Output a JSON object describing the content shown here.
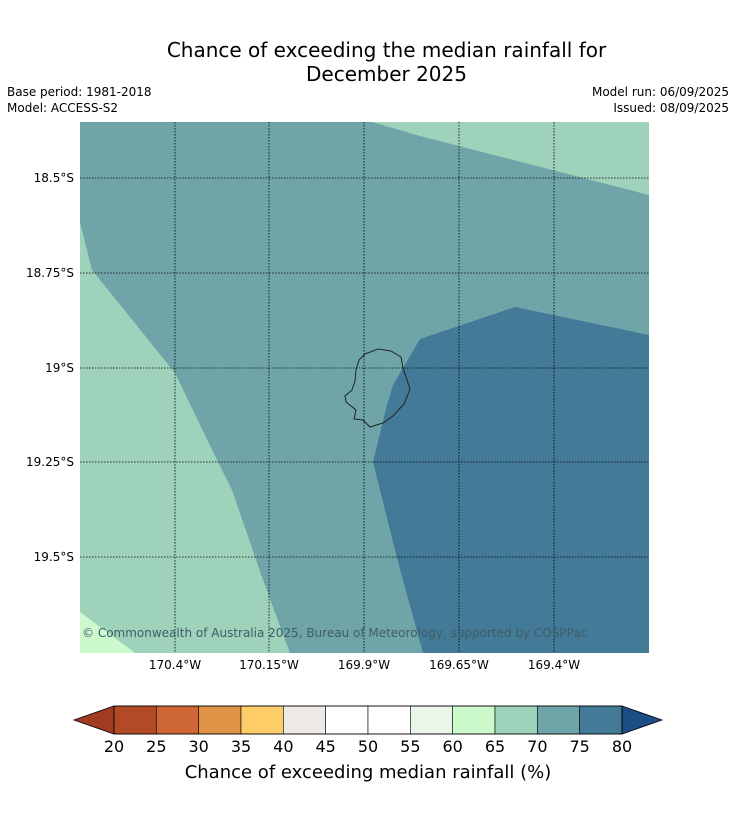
{
  "title": {
    "line1": "Chance of exceeding the median rainfall for",
    "line2": "December 2025"
  },
  "meta": {
    "base_period": "Base period: 1981-2018",
    "model": "Model: ACCESS-S2",
    "model_run": "Model run: 06/09/2025",
    "issued": "Issued: 08/09/2025"
  },
  "map": {
    "lat_labels": [
      "18.5°S",
      "18.75°S",
      "19°S",
      "19.25°S",
      "19.5°S"
    ],
    "lon_labels": [
      "170.4°W",
      "170.15°W",
      "169.9°W",
      "169.65°W",
      "169.4°W"
    ],
    "copyright": "© Commonwealth of Australia 2025, Bureau of Meteorology, supported by COSPPac",
    "region_colors": {
      "60-65": "#cdfacd",
      "65-70": "#9ed2ba",
      "70-75": "#6fa5a8",
      "75-80": "#427a98",
      "coast": "#222222"
    }
  },
  "colorbar": {
    "ticks": [
      "20",
      "25",
      "30",
      "35",
      "40",
      "45",
      "50",
      "55",
      "60",
      "65",
      "70",
      "75",
      "80"
    ],
    "colors": [
      "#b34a27",
      "#cf6834",
      "#e29446",
      "#fecd68",
      "#ede9e5",
      "#ffffff",
      "#ffffff",
      "#eaf6ea",
      "#cdfacd",
      "#9ed2ba",
      "#6fa5a8",
      "#427a98"
    ],
    "under_color": "#a13b22",
    "over_color": "#1c4e84",
    "label": "Chance of exceeding median rainfall (%)"
  }
}
